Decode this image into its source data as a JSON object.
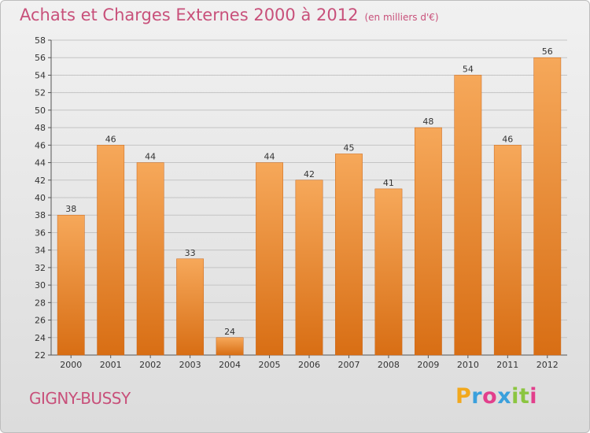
{
  "header": {
    "title": "Achats et Charges Externes 2000 à 2012",
    "subtitle": "(en milliers d'€)"
  },
  "footer": {
    "commune": "GIGNY-BUSSY",
    "logo_letters": [
      "P",
      "r",
      "o",
      "x",
      "i",
      "t",
      "i"
    ],
    "logo_colors": [
      "#f2a81d",
      "#3aa0dc",
      "#e23f8c",
      "#3aa0dc",
      "#8bc540",
      "#8bc540",
      "#e23f8c"
    ]
  },
  "colors": {
    "bar": "#f0882a",
    "bar_light": "#f6a85a",
    "bar_dark": "#d86e14",
    "title": "#c8507a",
    "grid": "#c4c4c4"
  },
  "chart_data": {
    "type": "bar",
    "title": "Achats et Charges Externes 2000 à 2012",
    "subtitle": "(en milliers d'€)",
    "categories": [
      "2000",
      "2001",
      "2002",
      "2003",
      "2004",
      "2005",
      "2006",
      "2007",
      "2008",
      "2009",
      "2010",
      "2011",
      "2012"
    ],
    "values": [
      38,
      46,
      44,
      33,
      24,
      44,
      42,
      45,
      41,
      48,
      54,
      46,
      56
    ],
    "ylim": [
      22,
      58
    ],
    "yticks": [
      22,
      24,
      26,
      28,
      30,
      32,
      34,
      36,
      38,
      40,
      42,
      44,
      46,
      48,
      50,
      52,
      54,
      56,
      58
    ],
    "xlabel": "",
    "ylabel": "",
    "grid": true
  }
}
